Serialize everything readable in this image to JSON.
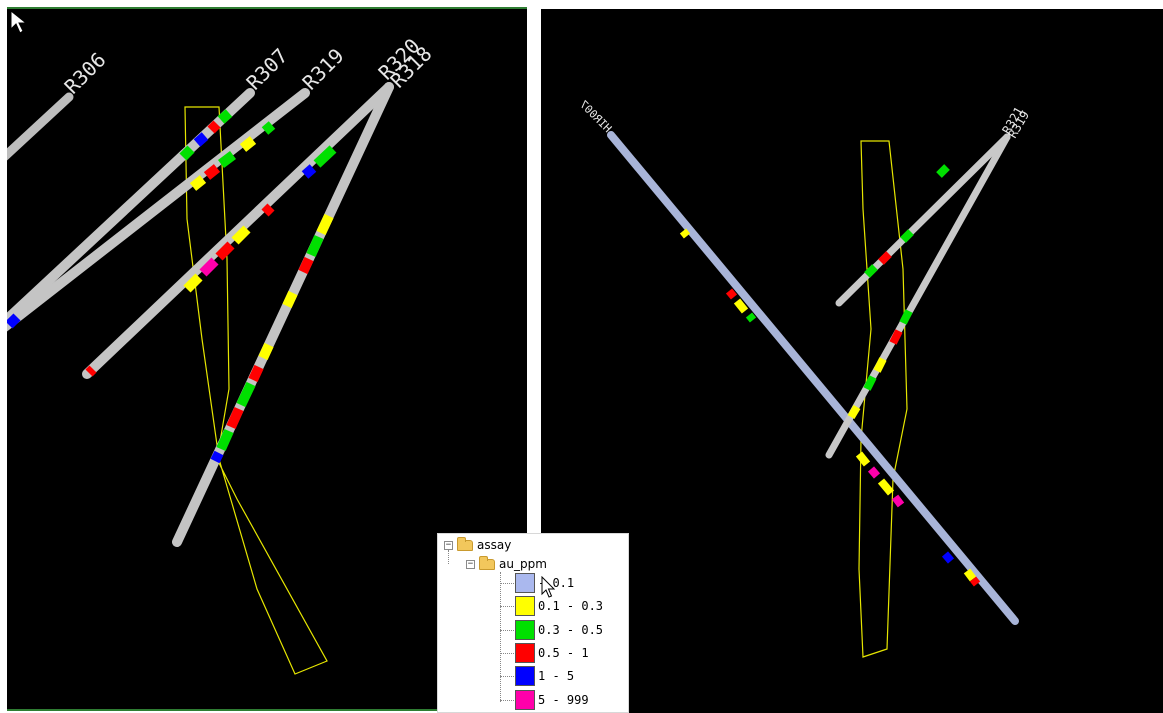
{
  "left_view": {
    "holes": [
      {
        "id": "R306",
        "label": "R306"
      },
      {
        "id": "R307",
        "label": "R307"
      },
      {
        "id": "R319",
        "label": "R319"
      },
      {
        "id": "R320",
        "label": "R320"
      },
      {
        "id": "R318",
        "label": "R318"
      }
    ]
  },
  "right_view": {
    "holes": [
      {
        "id": "HIR007",
        "label": "HIR007"
      },
      {
        "id": "R321",
        "label": "R321"
      },
      {
        "id": "R319",
        "label": "R319"
      }
    ]
  },
  "legend": {
    "root": "assay",
    "child": "au_ppm",
    "items": [
      {
        "range": "- 0.1",
        "color": "#aab8ee"
      },
      {
        "range": "0.1 - 0.3",
        "color": "#ffff00"
      },
      {
        "range": "0.3 - 0.5",
        "color": "#00e000"
      },
      {
        "range": "0.5 - 1",
        "color": "#ff0000"
      },
      {
        "range": "1 - 5",
        "color": "#0000ff"
      },
      {
        "range": "5 - 999",
        "color": "#ff00aa"
      }
    ]
  },
  "colors": {
    "background": "#000000",
    "hole_trace": "#c8c8c8",
    "hole_trace_right": "#a8b4d8",
    "ore_outline": "#e6e600",
    "view_border": "#2e7d32"
  },
  "icons": [
    "cursor-arrow-icon",
    "folder-icon",
    "expand-collapse-icon"
  ]
}
